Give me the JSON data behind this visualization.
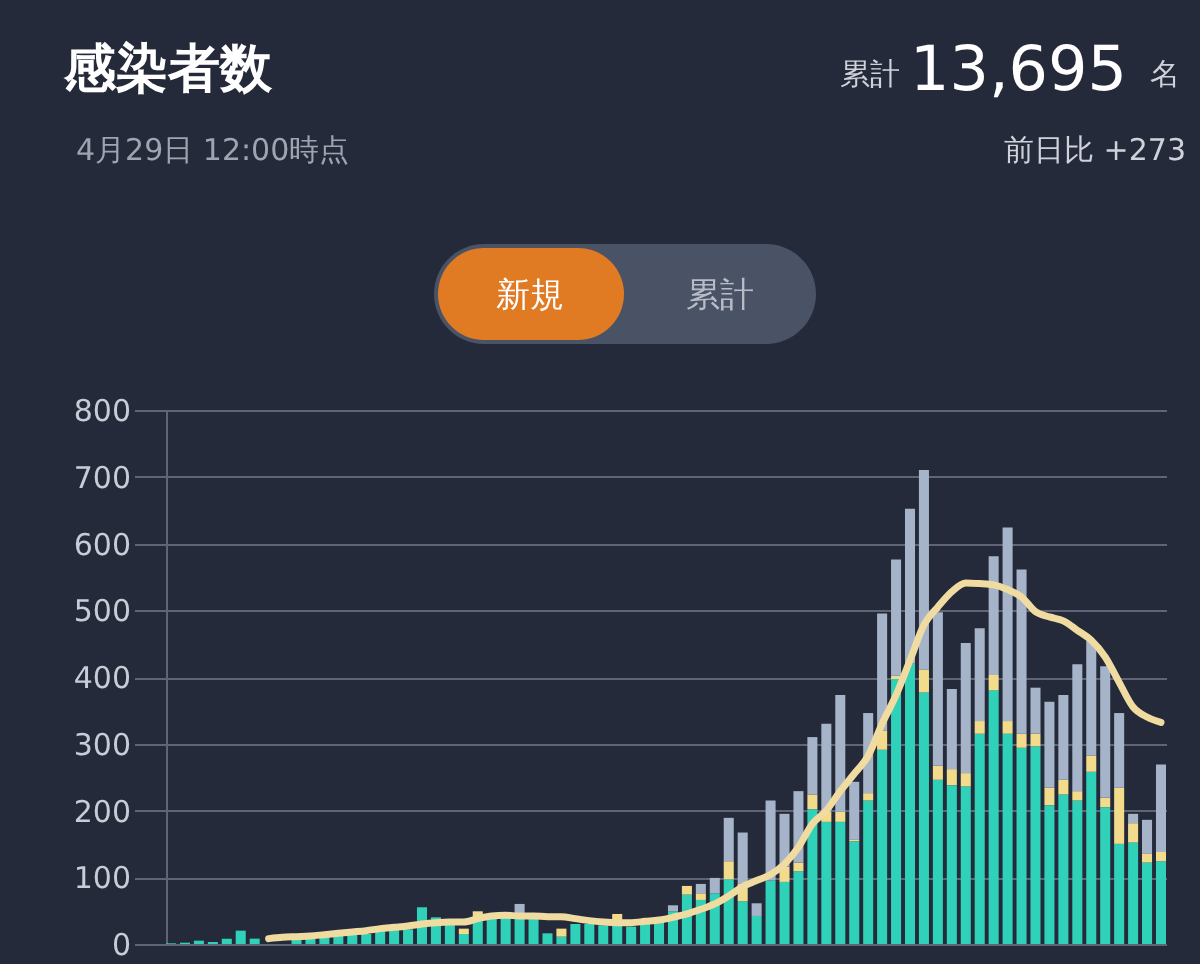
{
  "chart_data": {
    "type": "bar",
    "title": "感染者数",
    "subtitle": "4月29日 12:00時点",
    "annotations": [
      "累計",
      "13,695",
      "名",
      "前日比 +273",
      "新規",
      "累計"
    ],
    "categories": [
      null,
      null,
      null,
      null,
      null,
      null,
      null,
      null,
      null,
      null,
      null,
      null,
      null,
      null,
      null,
      null,
      null,
      null,
      null,
      null,
      null,
      null,
      null,
      null,
      null,
      null,
      null,
      null,
      null,
      null,
      null,
      null,
      null,
      null,
      null,
      null,
      null,
      null,
      null,
      null,
      null,
      null,
      null,
      null,
      null,
      null,
      null,
      null,
      null,
      null,
      null,
      null,
      null,
      null,
      null,
      null,
      null,
      null,
      null,
      null,
      null,
      null,
      null,
      null,
      null,
      null,
      null,
      null,
      null,
      null,
      null,
      null
    ],
    "stacked": true,
    "series": [
      {
        "color": "#2fd1b8",
        "values": [
          1,
          2,
          5,
          3,
          8,
          20,
          8,
          null,
          null,
          8,
          10,
          15,
          18,
          22,
          15,
          20,
          28,
          22,
          55,
          40,
          32,
          15,
          39,
          45,
          45,
          42,
          39,
          16,
          11,
          30,
          30,
          28,
          33,
          26,
          30,
          33,
          49,
          74,
          66,
          76,
          97,
          64,
          42,
          95,
          93,
          109,
          202,
          183,
          183,
          154,
          215,
          291,
          397,
          420,
          377,
          246,
          238,
          236,
          315,
          380,
          315,
          294,
          296,
          208,
          224,
          215,
          258,
          205,
          150,
          152,
          122,
          124
        ]
      },
      {
        "color": "#f2dc8c",
        "values": [
          0,
          0,
          0,
          0,
          0,
          0,
          0,
          0,
          0,
          0,
          0,
          0,
          0,
          0,
          0,
          0,
          0,
          0,
          0,
          0,
          0,
          8,
          10,
          0,
          null,
          0,
          0,
          0,
          12,
          0,
          0,
          0,
          12,
          0,
          0,
          0,
          0,
          13,
          10,
          0,
          27,
          26,
          0,
          0,
          23,
          13,
          22,
          15,
          15,
          2,
          11,
          29,
          5,
          null,
          34,
          21,
          24,
          20,
          19,
          23,
          19,
          21,
          19,
          26,
          22,
          14,
          24,
          14,
          84,
          29,
          13,
          14
        ]
      },
      {
        "color": "#a5b4c8",
        "values": [
          0,
          0,
          0,
          0,
          0,
          0,
          0,
          0,
          0,
          0,
          0,
          0,
          0,
          0,
          0,
          0,
          0,
          0,
          0,
          0,
          0,
          0,
          0,
          0,
          0,
          18,
          null,
          0,
          0,
          0,
          0,
          0,
          0,
          0,
          0,
          0,
          9,
          0,
          14,
          23,
          65,
          77,
          19,
          120,
          79,
          107,
          86,
          132,
          175,
          87,
          120,
          175,
          174,
          232,
          299,
          230,
          120,
          195,
          139,
          178,
          290,
          246,
          69,
          129,
          127,
          190,
          172,
          197,
          112,
          14,
          51,
          131
        ]
      },
      {
        "type": "line",
        "color": "#f0dba0",
        "values": [
          null,
          null,
          null,
          null,
          null,
          null,
          null,
          8,
          10,
          11,
          12,
          14,
          16,
          18,
          20,
          23,
          25,
          27,
          30,
          32,
          33,
          33,
          38,
          42,
          43,
          42,
          42,
          41,
          41,
          38,
          35,
          33,
          32,
          32,
          34,
          36,
          40,
          45,
          52,
          60,
          72,
          86,
          95,
          104,
          120,
          145,
          180,
          200,
          229,
          255,
          282,
          330,
          373,
          425,
          478,
          505,
          528,
          541,
          540,
          538,
          531,
          520,
          498,
          490,
          484,
          470,
          455,
          430,
          392,
          355,
          340,
          332
        ]
      }
    ],
    "ylim": [
      0,
      800
    ],
    "yticks": [
      0,
      100,
      200,
      300,
      400,
      500,
      600,
      700,
      800
    ],
    "grid": "y",
    "tick_labels": "y",
    "line_style": "solid",
    "marker": "none"
  }
}
